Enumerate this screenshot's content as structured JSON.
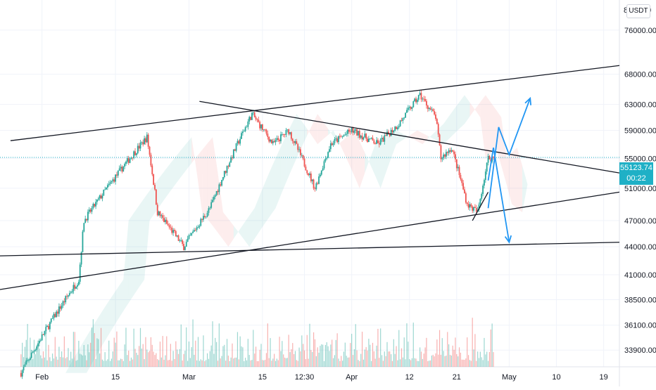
{
  "header": {
    "top_price_fragment": "8",
    "top_price_fragment2": "0"
  },
  "currency": "USDT",
  "last_price": {
    "value": "55123.74",
    "countdown": "00:22"
  },
  "colors": {
    "up": "#26a69a",
    "down": "#ef5350",
    "price_line": "#1fb0c6",
    "arrows": "#2196f3",
    "trendline": "#131722"
  },
  "chart_data": {
    "type": "candlestick",
    "symbol_quote": "USDT",
    "ylim": [
      32500,
      82000
    ],
    "y_scale": "log",
    "price_axis_ticks": [
      76000,
      68000,
      63000,
      59000,
      55000,
      51000,
      47000,
      44000,
      41000,
      38500,
      36100,
      33900
    ],
    "price_axis_labels": [
      "76000.00",
      "68000.00",
      "63000.00",
      "59000.00",
      "55000.00",
      "51000.00",
      "47000.00",
      "44000.00",
      "41000.00",
      "38500.00",
      "36100.00",
      "33900.00"
    ],
    "time_axis_labels": [
      "Feb",
      "15",
      "Mar",
      "15",
      "12:30",
      "Apr",
      "12",
      "21",
      "May",
      "10",
      "19"
    ],
    "time_axis_dates": [
      "2021-02-01",
      "2021-02-15",
      "2021-03-01",
      "2021-03-15",
      "2021-03-23",
      "2021-04-01",
      "2021-04-12",
      "2021-04-21",
      "2021-05-01",
      "2021-05-10",
      "2021-05-19"
    ],
    "x_range": [
      "2021-01-24",
      "2021-05-22"
    ],
    "candle_interval": "4h",
    "last_price": 55123.74,
    "key_prices": [
      {
        "date": "2021-01-28",
        "price": 32000
      },
      {
        "date": "2021-02-08",
        "price": 40500
      },
      {
        "date": "2021-02-09",
        "price": 47000
      },
      {
        "date": "2021-02-21",
        "price": 58000
      },
      {
        "date": "2021-02-23",
        "price": 48000
      },
      {
        "date": "2021-02-28",
        "price": 44000
      },
      {
        "date": "2021-03-05",
        "price": 48500
      },
      {
        "date": "2021-03-13",
        "price": 61500
      },
      {
        "date": "2021-03-17",
        "price": 57000
      },
      {
        "date": "2021-03-20",
        "price": 59000
      },
      {
        "date": "2021-03-25",
        "price": 51000
      },
      {
        "date": "2021-03-28",
        "price": 57000
      },
      {
        "date": "2021-04-01",
        "price": 59000
      },
      {
        "date": "2021-04-06",
        "price": 57000
      },
      {
        "date": "2021-04-10",
        "price": 60000
      },
      {
        "date": "2021-04-14",
        "price": 64500
      },
      {
        "date": "2021-04-17",
        "price": 61000
      },
      {
        "date": "2021-04-18",
        "price": 55000
      },
      {
        "date": "2021-04-20",
        "price": 56500
      },
      {
        "date": "2021-04-23",
        "price": 49000
      },
      {
        "date": "2021-04-25",
        "price": 48000
      },
      {
        "date": "2021-04-27",
        "price": 55000
      },
      {
        "date": "2021-04-28",
        "price": 55100
      }
    ],
    "trendlines": [
      {
        "name": "upper-channel",
        "p1": [
          "2021-01-26",
          57500
        ],
        "p2": [
          "2021-05-22",
          69500
        ]
      },
      {
        "name": "descending-resistance",
        "p1": [
          "2021-03-03",
          63500
        ],
        "p2": [
          "2021-05-22",
          53000
        ]
      },
      {
        "name": "rising-support",
        "p1": [
          "2021-01-24",
          39500
        ],
        "p2": [
          "2021-05-22",
          50500
        ]
      },
      {
        "name": "horizontal-support",
        "p1": [
          "2021-01-24",
          43000
        ],
        "p2": [
          "2021-05-22",
          44500
        ]
      },
      {
        "name": "short-rising",
        "p1": [
          "2021-04-24",
          47000
        ],
        "p2": [
          "2021-04-27",
          50500
        ]
      }
    ],
    "projection_arrows": [
      {
        "name": "bullish-projection",
        "points": [
          [
            "2021-04-27",
            48500
          ],
          [
            "2021-04-29",
            59500
          ],
          [
            "2021-05-01",
            55500
          ],
          [
            "2021-05-05",
            64000
          ]
        ]
      },
      {
        "name": "bearish-projection",
        "points": [
          [
            "2021-04-27",
            52000
          ],
          [
            "2021-04-28",
            56500
          ],
          [
            "2021-05-01",
            44500
          ]
        ]
      }
    ]
  }
}
